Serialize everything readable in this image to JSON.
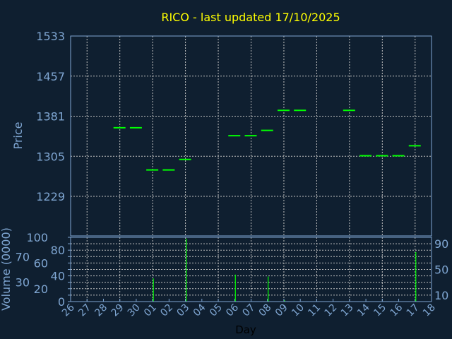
{
  "chart_data": [
    {
      "type": "candlestick",
      "title": "RICO - last updated 17/10/2025",
      "ylabel": "Price",
      "ylim": [
        1229,
        1533
      ],
      "yticks": [
        "1533",
        "1457",
        "1381",
        "1305",
        "1229"
      ],
      "grid": true,
      "categories": [
        "26",
        "27",
        "28",
        "29",
        "30",
        "01",
        "02",
        "03",
        "04",
        "05",
        "06",
        "07",
        "08",
        "09",
        "10",
        "11",
        "12",
        "13",
        "14",
        "15",
        "16",
        "17",
        "18"
      ],
      "points": [
        {
          "day": "29",
          "price": 1359
        },
        {
          "day": "30",
          "price": 1359
        },
        {
          "day": "01",
          "price": 1279
        },
        {
          "day": "02",
          "price": 1279
        },
        {
          "day": "03",
          "price": 1299
        },
        {
          "day": "06",
          "price": 1344
        },
        {
          "day": "07",
          "price": 1344
        },
        {
          "day": "08",
          "price": 1354
        },
        {
          "day": "09",
          "price": 1392
        },
        {
          "day": "10",
          "price": 1392
        },
        {
          "day": "13",
          "price": 1392
        },
        {
          "day": "14",
          "price": 1306
        },
        {
          "day": "15",
          "price": 1306
        },
        {
          "day": "16",
          "price": 1306
        },
        {
          "day": "17",
          "price": 1325
        }
      ]
    },
    {
      "type": "bar",
      "ylabel": "Volume (0000)",
      "xlabel": "Day",
      "ylim": [
        0,
        100
      ],
      "yticks": [
        "0",
        "10",
        "20",
        "30",
        "40",
        "50",
        "60",
        "70",
        "80",
        "90",
        "100"
      ],
      "grid": true,
      "bars": [
        {
          "day": "01",
          "value": 36
        },
        {
          "day": "03",
          "value": 98
        },
        {
          "day": "06",
          "value": 42
        },
        {
          "day": "08",
          "value": 39
        },
        {
          "day": "09",
          "value": 2
        },
        {
          "day": "17",
          "value": 77
        }
      ]
    }
  ],
  "colors": {
    "background": "#0f1f30",
    "axis": "#7fa6d2",
    "title": "#ffff00",
    "series": "#00ff00",
    "grid": "#c0c0c0"
  }
}
